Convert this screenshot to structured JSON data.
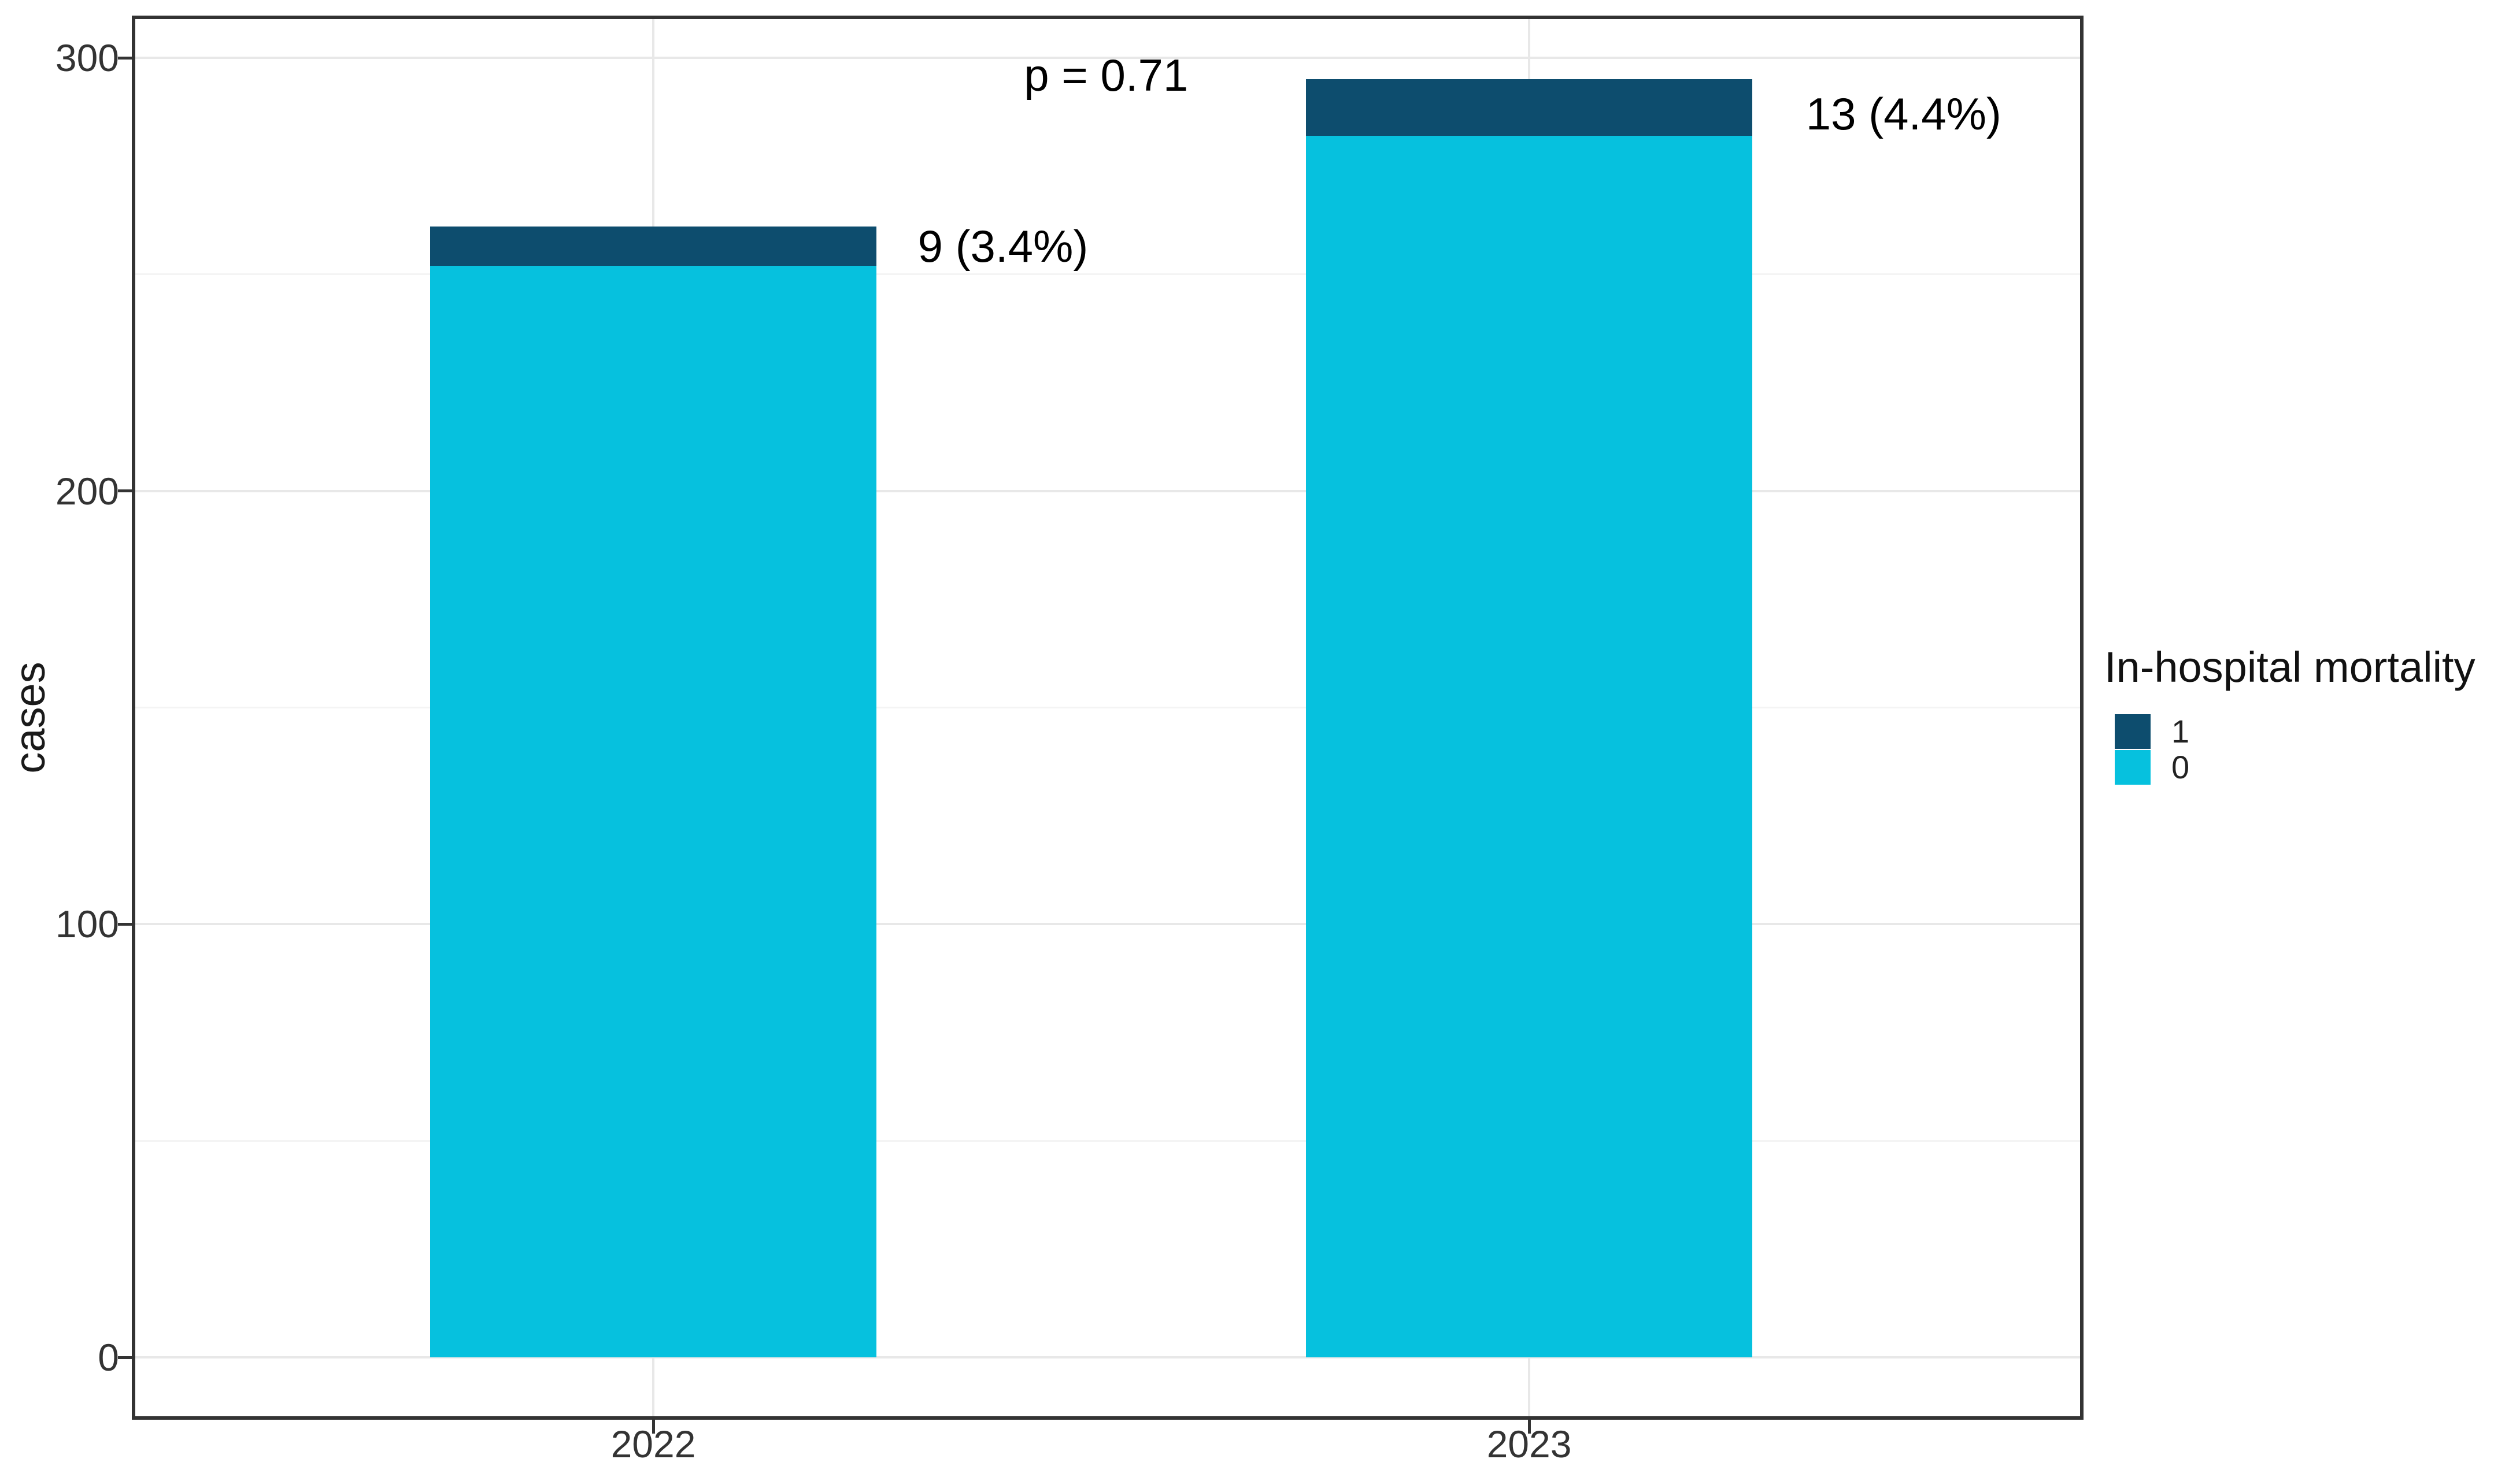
{
  "chart_data": {
    "type": "bar",
    "stacked": true,
    "title": "",
    "xlabel": "",
    "ylabel": "cases",
    "categories": [
      "2022",
      "2023"
    ],
    "series": [
      {
        "name": "0",
        "label": "0",
        "color": "#06c1de",
        "values": [
          252,
          282
        ]
      },
      {
        "name": "1",
        "label": "1",
        "color": "#0d4d6e",
        "values": [
          9,
          13
        ]
      }
    ],
    "stack_order_bottom_to_top": [
      "0",
      "1"
    ],
    "ylim": [
      0,
      300
    ],
    "yticks": [
      0,
      100,
      200,
      300
    ],
    "yticks_minor": [
      50,
      150,
      250
    ],
    "grid": "major+minor",
    "annotations": [
      {
        "text": "p = 0.71",
        "x": 1.517,
        "y": 296,
        "anchor": "middle"
      },
      {
        "text": "9 (3.4%)",
        "x": 1.302,
        "y": 256.5,
        "anchor": "start"
      },
      {
        "text": "13 (4.4%)",
        "x": 2.316,
        "y": 287,
        "anchor": "start"
      }
    ],
    "legend": {
      "title": "In-hospital mortality",
      "position": "right",
      "entries": [
        {
          "label": "1",
          "color": "#0d4d6e"
        },
        {
          "label": "0",
          "color": "#06c1de"
        }
      ]
    },
    "colors": {
      "mortality_1": "#0d4d6e",
      "mortality_0": "#06c1de",
      "grid_major": "#e8e8e8",
      "grid_minor": "#f4f4f4",
      "panel_border": "#333333",
      "axis_text": "#333333",
      "annotation_text": "#000000",
      "background": "#ffffff"
    }
  }
}
